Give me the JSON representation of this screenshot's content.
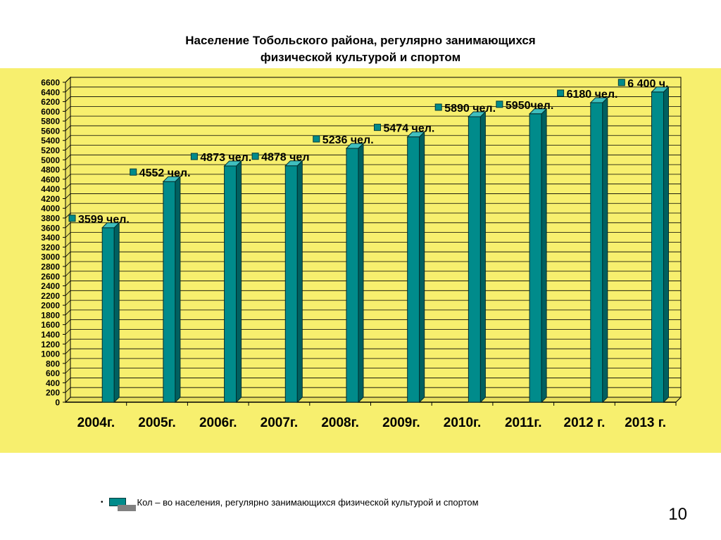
{
  "title_line1": "Население Тобольского района, регулярно занимающихся",
  "title_line2": "физической культурой и спортом",
  "page_number": "10",
  "colors": {
    "panel": "#f7ef6e",
    "bar": "#008b8b",
    "bar_dark": "#006060",
    "bar_top": "#3fbfbf",
    "plot_bg": "#f7ef6e"
  },
  "chart_data": {
    "type": "bar",
    "categories": [
      "2004г.",
      "2005г.",
      "2006г.",
      "2007г.",
      "2008г.",
      "2009г.",
      "2010г.",
      "2011г.",
      "2012 г.",
      "2013 г."
    ],
    "series": [
      {
        "name": "Кол – во населения, регулярно занимающихся физической культурой и спортом",
        "values": [
          3599,
          4552,
          4873,
          4878,
          5236,
          5474,
          5890,
          5950,
          6180,
          6400
        ]
      }
    ],
    "data_labels": [
      "3599 чел.",
      "4552 чел.",
      "4873 чел.",
      "4878 чел",
      "5236 чел.",
      "5474 чел.",
      "5890 чел.",
      "5950чел.",
      "6180 чел.",
      "6 400 ч."
    ],
    "ylim": [
      0,
      6600
    ],
    "yticks": [
      0,
      200,
      400,
      600,
      800,
      1000,
      1200,
      1400,
      1600,
      1800,
      2000,
      2200,
      2400,
      2600,
      2800,
      3000,
      3200,
      3400,
      3600,
      3800,
      4000,
      4200,
      4400,
      4600,
      4800,
      5000,
      5200,
      5400,
      5600,
      5800,
      6000,
      6200,
      6400,
      6600
    ],
    "grid": true,
    "legend_position": "bottom"
  }
}
